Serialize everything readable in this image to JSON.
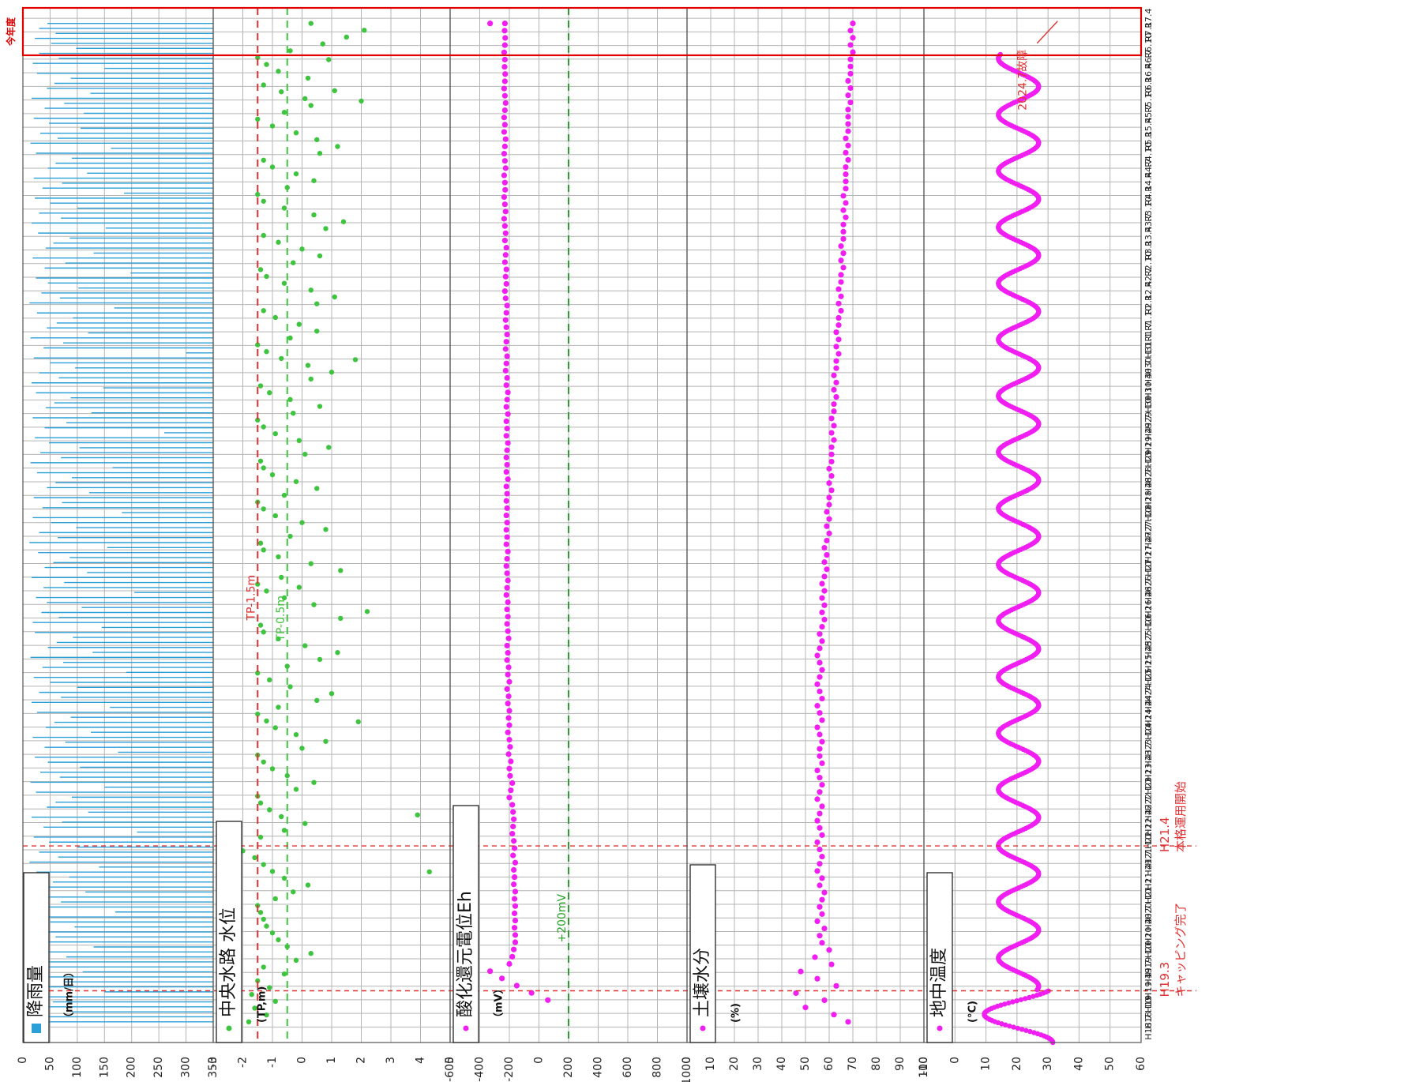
{
  "chart_data": {
    "type": "scatter",
    "orientation": "rotated-90-clockwise",
    "time_axis": {
      "tick_labels": [
        "H18.7",
        "H18.10",
        "H19.1",
        "H19.4",
        "H19.7",
        "H19.10",
        "H20.1",
        "H20.4",
        "H20.7",
        "H20.10",
        "H21.1",
        "H21.4",
        "H21.7",
        "H21.10",
        "H22.1",
        "H22.4",
        "H22.7",
        "H22.10",
        "H23.1",
        "H23.4",
        "H23.7",
        "H23.10",
        "H24.1",
        "H24.4",
        "H24.7",
        "H24.10",
        "H25.1",
        "H25.4",
        "H25.7",
        "H25.10",
        "H26.1",
        "H26.4",
        "H26.7",
        "H26.10",
        "H27.1",
        "H27.4",
        "H27.7",
        "H27.10",
        "H28.1",
        "H28.4",
        "H28.7",
        "H28.10",
        "H29.1",
        "H29.4",
        "H29.7",
        "H29.10",
        "H30.1",
        "H30.4",
        "H30.7",
        "H30.10",
        "H31.1",
        "R1.7",
        "R1.10",
        "R2.1",
        "R2.4",
        "R2.7",
        "R2.10",
        "R3.1",
        "R3.4",
        "R3.7",
        "R3.10",
        "R4.1",
        "R4.4",
        "R4.7",
        "R4.10",
        "R5.1",
        "R5.4",
        "R5.7",
        "R5.10",
        "R6.1",
        "R6.4",
        "R6.7",
        "R6.10",
        "R7.1",
        "R7.4"
      ]
    },
    "panels": [
      {
        "name": "rainfall",
        "type": "bar",
        "legend": "降雨量",
        "unit_label": "（mm/日）",
        "ylim": [
          0,
          350
        ],
        "ticks": [
          350,
          300,
          250,
          200,
          150,
          100,
          50,
          0
        ],
        "color": "#2b9fd8",
        "bar_values": [
          40,
          12,
          90,
          25,
          55,
          8,
          150,
          30,
          75,
          18,
          110,
          45,
          22,
          80,
          35,
          130,
          15,
          60,
          28,
          95,
          50,
          10,
          170,
          40,
          70,
          20,
          115,
          35,
          55,
          85,
          25,
          140,
          12,
          65,
          30,
          100,
          48,
          20,
          210,
          38,
          72,
          16,
          120,
          44,
          60,
          90,
          24,
          150,
          14,
          68,
          32,
          105,
          46,
          22,
          175,
          40,
          78,
          18,
          125,
          42,
          58,
          88,
          26,
          160,
          16,
          70,
          30,
          100,
          50,
          20,
          190,
          36,
          74,
          14,
          128,
          46,
          62,
          92,
          22,
          145,
          18,
          66,
          34,
          108,
          44,
          24,
          205,
          38,
          76,
          16,
          118,
          40,
          56,
          86,
          28,
          155,
          12,
          64,
          30,
          98,
          52,
          18,
          182,
          36,
          72,
          20,
          122,
          44,
          60,
          90,
          26,
          165,
          14,
          70,
          32,
          104,
          48,
          22,
          260,
          40,
          80,
          18,
          126,
          42,
          58,
          88,
          24,
          148,
          16,
          66,
          30,
          96,
          50,
          20,
          300,
          38,
          74,
          14,
          120,
          44,
          62,
          92,
          26,
          168,
          12,
          68,
          34,
          102,
          46,
          24,
          198,
          40,
          78,
          18,
          130,
          42,
          56,
          86,
          28,
          152,
          16,
          70,
          30,
          100,
          50,
          22,
          186,
          36,
          72,
          20,
          118,
          46,
          60,
          90,
          24,
          162,
          14,
          64,
          32,
          106,
          48,
          20,
          112,
          40,
          76,
          16,
          124,
          44,
          58,
          88,
          26,
          150,
          18,
          66,
          30,
          98,
          52,
          22,
          60,
          30,
          45
        ]
      },
      {
        "name": "water-level",
        "type": "scatter",
        "legend": "中央水路 水位",
        "unit_label": "(TP,m)",
        "ylim": [
          -3,
          5
        ],
        "ticks": [
          5,
          4,
          3,
          2,
          1,
          0,
          -1,
          -2,
          -3
        ],
        "color": "#3ec43e",
        "series_values": [
          -1.8,
          -1.2,
          -1.6,
          -0.9,
          -1.7,
          -1.1,
          -1.5,
          -0.6,
          -1.3,
          -0.2,
          0.3,
          -0.5,
          -0.8,
          -1.0,
          -1.2,
          -1.3,
          -1.4,
          -1.5,
          -0.9,
          -0.3,
          0.2,
          -0.6,
          -1.0,
          -1.3,
          -1.6,
          -2.0,
          -2.4,
          -1.4,
          -0.6,
          0.1,
          -0.7,
          -1.1,
          -1.4,
          -1.5,
          -0.2,
          0.4,
          -0.5,
          -1.0,
          -1.3,
          -1.5,
          0.0,
          0.8,
          -0.2,
          -0.9,
          -1.2,
          -1.5,
          -0.8,
          0.5,
          1.0,
          -0.4,
          -1.1,
          -1.5,
          -0.5,
          0.6,
          1.2,
          0.1,
          -0.8,
          -1.3,
          -1.4,
          1.3,
          2.2,
          0.4,
          -0.6,
          -1.2,
          -1.5,
          -0.7,
          1.3,
          0.3,
          -0.8,
          -1.3,
          -1.4,
          -0.4,
          0.8,
          0.0,
          -0.9,
          -1.3,
          -1.5,
          -0.6,
          0.5,
          -0.2,
          -1.0,
          -1.3,
          -1.4,
          0.1,
          0.9,
          -0.1,
          -0.9,
          -1.3,
          -1.5,
          -0.3,
          0.6,
          -0.4,
          -1.1,
          -1.4,
          0.3,
          1.0,
          0.2,
          -0.7,
          -1.2,
          -1.5,
          -0.4,
          0.5,
          -0.1,
          -0.9,
          -1.3,
          0.5,
          1.1,
          0.3,
          -0.6,
          -1.2,
          -1.4,
          -0.3,
          0.6,
          0.0,
          -0.8,
          -1.3,
          0.8,
          1.4,
          0.4,
          -0.6,
          -1.3,
          -1.5,
          -0.5,
          0.4,
          -0.2,
          -1.0,
          -1.3,
          0.6,
          1.2,
          0.5,
          -0.2,
          -1.0,
          -1.5,
          -0.6,
          0.3,
          0.1,
          -0.7,
          -1.3,
          0.2,
          -0.8,
          -1.2,
          -1.5,
          -0.4,
          0.7,
          1.5,
          2.1,
          0.3
        ],
        "outlier_points": [
          [
            0.165,
            4.3
          ],
          [
            0.22,
            3.9
          ],
          [
            0.31,
            1.9
          ],
          [
            0.44,
            -0.1
          ],
          [
            0.66,
            1.8
          ],
          [
            0.91,
            2.0
          ],
          [
            0.92,
            1.1
          ],
          [
            0.95,
            0.9
          ]
        ],
        "reference_lines": [
          {
            "label": "TP-0.5m",
            "value": -0.5,
            "color": "#3ec43e"
          },
          {
            "label": "TP-1.5m",
            "value": -1.5,
            "color": "#e03030"
          }
        ]
      },
      {
        "name": "eh",
        "type": "scatter",
        "legend": "酸化還元電位Eh",
        "unit_label": "（mV）",
        "ylim": [
          -600,
          1000
        ],
        "ticks": [
          1000,
          800,
          600,
          400,
          200,
          0,
          -200,
          -400,
          -600
        ],
        "color": "#f01ef0",
        "series_values": [
          null,
          null,
          null,
          60,
          -50,
          -150,
          -250,
          -330,
          -200,
          -180,
          -170,
          -160,
          -160,
          -165,
          -160,
          -165,
          -160,
          -165,
          -160,
          -170,
          -165,
          -170,
          -160,
          -175,
          -165,
          -170,
          -180,
          -175,
          -170,
          -175,
          -180,
          -200,
          -190,
          -180,
          -195,
          -200,
          -190,
          -205,
          -195,
          -200,
          -210,
          -200,
          -205,
          -200,
          -210,
          -205,
          -215,
          -200,
          -210,
          -205,
          -215,
          -210,
          -215,
          -205,
          -210,
          -215,
          -210,
          -215,
          -210,
          -220,
          -215,
          -210,
          -215,
          -220,
          -215,
          -210,
          -220,
          -215,
          -220,
          -215,
          -220,
          -215,
          -220,
          -215,
          -220,
          -210,
          -220,
          -215,
          -220,
          -215,
          -210,
          -220,
          -215,
          -220,
          -210,
          -220,
          -215,
          -210,
          -220,
          -215,
          -225,
          -220,
          -215,
          -225,
          -220,
          -215,
          -220,
          -225,
          -220,
          -215,
          -225,
          -230,
          -220,
          -225,
          -220,
          -230,
          -225,
          -220,
          -230,
          -225,
          -230,
          -235,
          -225,
          -230,
          -235,
          -228,
          -230,
          -235,
          -225,
          -230,
          -235,
          -230,
          -225,
          -235,
          -230,
          -235,
          -230,
          -225,
          -230,
          -235,
          -230,
          -228,
          -232,
          -230,
          -235,
          -230,
          -228,
          -232,
          -230
        ],
        "outlier_points": [
          [
            0.985,
            -330
          ]
        ],
        "reference_lines": [
          {
            "label": "+200mV",
            "value": 200,
            "color": "#2aa02a"
          }
        ]
      },
      {
        "name": "soil-moisture",
        "type": "scatter",
        "legend": "土壌水分",
        "unit_label": "(%)",
        "ylim": [
          0,
          100
        ],
        "ticks": [
          100,
          90,
          80,
          70,
          60,
          50,
          40,
          30,
          20,
          10,
          0
        ],
        "color": "#f01ef0",
        "series_values": [
          68,
          62,
          50,
          58,
          46,
          63,
          55,
          48,
          61,
          54,
          60,
          57,
          56,
          58,
          55,
          57,
          56,
          57,
          58,
          56,
          57,
          55,
          56,
          57,
          56,
          55,
          57,
          56,
          55,
          56,
          57,
          55,
          56,
          57,
          56,
          55,
          57,
          56,
          56,
          57,
          56,
          55,
          57,
          56,
          55,
          57,
          56,
          55,
          56,
          57,
          56,
          55,
          56,
          57,
          56,
          57,
          58,
          57,
          58,
          57,
          58,
          57,
          58,
          59,
          58,
          59,
          58,
          59,
          60,
          59,
          60,
          59,
          60,
          60,
          61,
          60,
          61,
          60,
          61,
          61,
          61,
          62,
          61,
          62,
          61,
          62,
          62,
          63,
          62,
          63,
          62,
          63,
          63,
          64,
          63,
          64,
          63,
          64,
          64,
          65,
          64,
          65,
          64,
          65,
          65,
          66,
          65,
          66,
          65,
          66,
          66,
          66,
          67,
          66,
          67,
          66,
          67,
          67,
          67,
          67,
          68,
          67,
          68,
          67,
          68,
          68,
          68,
          68,
          69,
          68,
          69,
          68,
          69,
          69,
          69,
          70,
          69,
          70,
          69,
          70
        ],
        "outlier_points": [],
        "reference_lines": []
      },
      {
        "name": "soil-temperature",
        "type": "line",
        "legend": "地中温度",
        "unit_label": "(°C)",
        "ylim": [
          -10,
          60
        ],
        "ticks": [
          60,
          50,
          40,
          30,
          20,
          10,
          0,
          -10
        ],
        "color": "#f01ef0",
        "cycle_min": 14,
        "cycle_max": 27,
        "start_x": 0.0,
        "end_x": 0.955,
        "annotations": [
          {
            "label": "2024.7故障"
          }
        ]
      }
    ],
    "event_lines": [
      {
        "label": "H19.3",
        "sublabel": "キャッピング完了",
        "color": "#e03030"
      },
      {
        "label": "H21.4",
        "sublabel": "本格運用開始",
        "color": "#e03030"
      }
    ],
    "highlight": {
      "label": "今年度",
      "color": "#e00000"
    }
  }
}
